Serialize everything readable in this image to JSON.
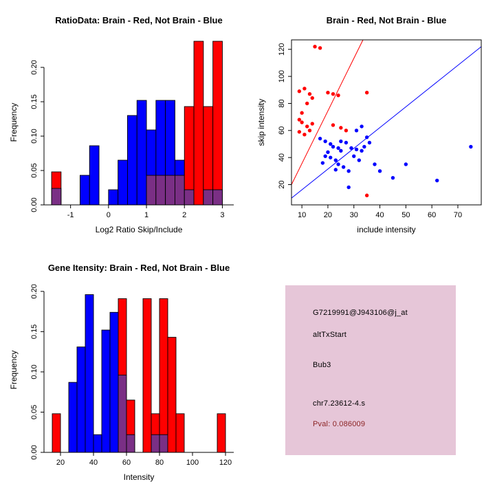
{
  "info": {
    "lines": {
      "probe_id": "G7219991@J943106@j_at",
      "event_type": "altTxStart",
      "gene_name": "Bub3",
      "location": "chr7.23612-4.s",
      "pval": "Pval: 0.086009"
    },
    "box_color": "#e6c6d8",
    "pval_color": "#8b2323"
  },
  "chart_data": [
    {
      "id": "ratio_hist",
      "type": "dual_histogram",
      "title": "RatioData: Brain - Red, Not Brain - Blue",
      "xlabel": "Log2 Ratio Skip/Include",
      "ylabel": "Frequency",
      "xlim": [
        -1.7,
        3.3
      ],
      "ylim": [
        0,
        0.24
      ],
      "x_ticks": [
        -1,
        0,
        1,
        2,
        3
      ],
      "y_ticks": [
        0,
        0.05,
        0.1,
        0.15,
        0.2
      ],
      "y_tick_decimals": 2,
      "box": false,
      "grid": false,
      "colors": {
        "red": "#ff0000",
        "blue": "#0000ff",
        "overlap": "#7a2f85"
      },
      "series_names": {
        "red": "Brain",
        "blue": "Not Brain"
      },
      "bins": [
        [
          -1.5,
          -1.25,
          0.048,
          0.024
        ],
        [
          -0.75,
          -0.5,
          0,
          0.043
        ],
        [
          -0.5,
          -0.25,
          0,
          0.086
        ],
        [
          0,
          0.25,
          0,
          0.022
        ],
        [
          0.25,
          0.5,
          0,
          0.065
        ],
        [
          0.5,
          0.75,
          0,
          0.13
        ],
        [
          0.75,
          1.0,
          0,
          0.152
        ],
        [
          1.0,
          1.25,
          0.043,
          0.109
        ],
        [
          1.25,
          1.5,
          0.043,
          0.152
        ],
        [
          1.5,
          1.75,
          0.043,
          0.152
        ],
        [
          1.75,
          2.0,
          0.043,
          0.065
        ],
        [
          2.0,
          2.25,
          0.143,
          0.022
        ],
        [
          2.25,
          2.5,
          0.238,
          0
        ],
        [
          2.5,
          2.75,
          0.143,
          0.022
        ],
        [
          2.75,
          3.0,
          0.238,
          0.022
        ]
      ]
    },
    {
      "id": "scatter",
      "type": "scatter",
      "title": "Brain - Red, Not Brain - Blue",
      "xlabel": "include intensity",
      "ylabel": "skip intensity",
      "xlim": [
        6,
        79
      ],
      "ylim": [
        5,
        127
      ],
      "x_ticks": [
        10,
        20,
        30,
        40,
        50,
        60,
        70
      ],
      "y_ticks": [
        20,
        40,
        60,
        80,
        100,
        120
      ],
      "box": true,
      "grid": false,
      "lines": [
        {
          "name": "brain-fit-line",
          "color": "#ff0000",
          "x1": 6,
          "y1": 20,
          "x2": 33.5,
          "y2": 127
        },
        {
          "name": "notbrain-fit-line",
          "color": "#0000ff",
          "x1": 6,
          "y1": 10,
          "x2": 79,
          "y2": 122
        }
      ],
      "series": [
        {
          "name": "Brain",
          "color": "#ff0000",
          "points": [
            [
              15,
              122
            ],
            [
              17,
              121
            ],
            [
              9,
              89
            ],
            [
              11,
              91
            ],
            [
              13,
              87
            ],
            [
              12,
              80
            ],
            [
              14,
              84
            ],
            [
              10,
              73
            ],
            [
              20,
              88
            ],
            [
              22,
              87
            ],
            [
              24,
              86
            ],
            [
              35,
              88
            ],
            [
              9,
              68
            ],
            [
              10,
              66
            ],
            [
              12,
              63
            ],
            [
              14,
              65
            ],
            [
              9,
              59
            ],
            [
              11,
              57
            ],
            [
              13,
              60
            ],
            [
              22,
              64
            ],
            [
              25,
              62
            ],
            [
              27,
              60
            ],
            [
              35,
              12
            ]
          ]
        },
        {
          "name": "Not Brain",
          "color": "#0000ff",
          "points": [
            [
              17,
              54
            ],
            [
              19,
              52
            ],
            [
              21,
              50
            ],
            [
              22,
              48
            ],
            [
              24,
              47
            ],
            [
              25,
              45
            ],
            [
              20,
              44
            ],
            [
              19,
              41
            ],
            [
              21,
              40
            ],
            [
              23,
              38
            ],
            [
              18,
              36
            ],
            [
              24,
              35
            ],
            [
              26,
              33
            ],
            [
              23,
              31
            ],
            [
              28,
              30
            ],
            [
              29,
              47
            ],
            [
              31,
              46
            ],
            [
              33,
              45
            ],
            [
              27,
              51
            ],
            [
              25,
              52
            ],
            [
              30,
              41
            ],
            [
              32,
              38
            ],
            [
              34,
              48
            ],
            [
              36,
              51
            ],
            [
              31,
              60
            ],
            [
              33,
              63
            ],
            [
              38,
              35
            ],
            [
              40,
              30
            ],
            [
              45,
              25
            ],
            [
              50,
              35
            ],
            [
              62,
              23
            ],
            [
              75,
              48
            ],
            [
              28,
              18
            ],
            [
              35,
              55
            ]
          ]
        }
      ]
    },
    {
      "id": "intensity_hist",
      "type": "dual_histogram",
      "title": "Gene Itensity: Brain - Red, Not Brain - Blue",
      "xlabel": "Intensity",
      "ylabel": "Frequency",
      "xlim": [
        10,
        125
      ],
      "ylim": [
        0,
        0.205
      ],
      "x_ticks": [
        20,
        40,
        60,
        80,
        100,
        120
      ],
      "y_ticks": [
        0,
        0.05,
        0.1,
        0.15,
        0.2
      ],
      "y_tick_decimals": 2,
      "box": false,
      "grid": false,
      "colors": {
        "red": "#ff0000",
        "blue": "#0000ff",
        "overlap": "#7a2f85"
      },
      "series_names": {
        "red": "Brain",
        "blue": "Not Brain"
      },
      "bins": [
        [
          15,
          20,
          0.048,
          0
        ],
        [
          25,
          30,
          0,
          0.087
        ],
        [
          30,
          35,
          0,
          0.131
        ],
        [
          35,
          40,
          0,
          0.196
        ],
        [
          40,
          45,
          0,
          0.022
        ],
        [
          45,
          50,
          0,
          0.152
        ],
        [
          50,
          55,
          0,
          0.174
        ],
        [
          55,
          60,
          0.191,
          0.096
        ],
        [
          60,
          65,
          0.065,
          0.022
        ],
        [
          70,
          75,
          0.191,
          0
        ],
        [
          75,
          80,
          0.048,
          0.022
        ],
        [
          80,
          85,
          0.191,
          0.022
        ],
        [
          85,
          90,
          0.143,
          0
        ],
        [
          90,
          95,
          0.048,
          0
        ],
        [
          115,
          120,
          0.048,
          0
        ]
      ]
    }
  ]
}
